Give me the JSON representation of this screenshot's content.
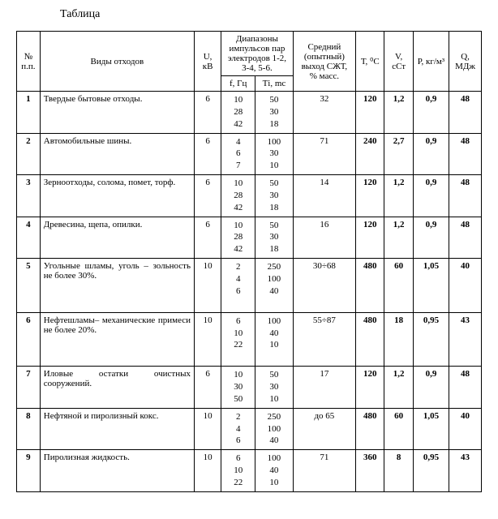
{
  "title": "Таблица",
  "headers": {
    "num": "№ п.п.",
    "waste": "Виды отходов",
    "u": "U, кВ",
    "pulse": "Диапазоны импульсов пар электродов 1-2, 3-4, 5-6.",
    "f": "f, Гц",
    "ti": "Тi, mc",
    "szh": "Средний (опытный) выход СЖТ, % масс.",
    "t": "Т, ⁰С",
    "v": "V, сСт",
    "p": "Р, кг/м³",
    "q": "Q, МДж"
  },
  "rows": [
    {
      "n": "1",
      "waste": "Твердые бытовые отходы.",
      "u": "6",
      "f": [
        "10",
        "28",
        "42"
      ],
      "ti": [
        "50",
        "30",
        "18"
      ],
      "szh": "32",
      "t": "120",
      "v": "1,2",
      "p": "0,9",
      "q": "48",
      "bold": true
    },
    {
      "n": "2",
      "waste": "Автомобильные шины.",
      "u": "6",
      "f": [
        "4",
        "6",
        "7"
      ],
      "ti": [
        "100",
        "30",
        "10"
      ],
      "szh": "71",
      "t": "240",
      "v": "2,7",
      "p": "0,9",
      "q": "48",
      "bold": true
    },
    {
      "n": "3",
      "waste": "Зерноотходы, солома, помет, торф.",
      "u": "6",
      "f": [
        "10",
        "28",
        "42"
      ],
      "ti": [
        "50",
        "30",
        "18"
      ],
      "szh": "14",
      "t": "120",
      "v": "1,2",
      "p": "0,9",
      "q": "48",
      "bold": true
    },
    {
      "n": "4",
      "waste": "Древесина, щепа, опилки.",
      "u": "6",
      "f": [
        "10",
        "28",
        "42"
      ],
      "ti": [
        "50",
        "30",
        "18"
      ],
      "szh": "16",
      "t": "120",
      "v": "1,2",
      "p": "0,9",
      "q": "48",
      "bold": true
    },
    {
      "n": "5",
      "waste": "Угольные шламы, уголь – зольность не более 30%.",
      "u": "10",
      "f": [
        "2",
        "4",
        "6"
      ],
      "ti": [
        "250",
        "100",
        "40"
      ],
      "szh": "30÷68",
      "t": "480",
      "v": "60",
      "p": "1,05",
      "q": "40",
      "bold": true,
      "tall": true
    },
    {
      "n": "6",
      "waste": "Нефтешламы– механические примеси не более 20%.",
      "u": "10",
      "f": [
        "6",
        "10",
        "22"
      ],
      "ti": [
        "100",
        "40",
        "10"
      ],
      "szh": "55÷87",
      "t": "480",
      "v": "18",
      "p": "0,95",
      "q": "43",
      "bold": true,
      "tall": true
    },
    {
      "n": "7",
      "waste": "Иловые остатки очистных сооружений.",
      "u": "6",
      "f": [
        "10",
        "30",
        "50"
      ],
      "ti": [
        "50",
        "30",
        "10"
      ],
      "szh": "17",
      "t": "120",
      "v": "1,2",
      "p": "0,9",
      "q": "48",
      "bold": true
    },
    {
      "n": "8",
      "waste": "Нефтяной и пиролизный кокс.",
      "u": "10",
      "f": [
        "2",
        "4",
        "6"
      ],
      "ti": [
        "250",
        "100",
        "40"
      ],
      "szh": "до 65",
      "t": "480",
      "v": "60",
      "p": "1,05",
      "q": "40",
      "bold": true
    },
    {
      "n": "9",
      "waste": "Пиролизная жидкость.",
      "u": "10",
      "f": [
        "6",
        "10",
        "22"
      ],
      "ti": [
        "100",
        "40",
        "10"
      ],
      "szh": "71",
      "t": "360",
      "v": "8",
      "p": "0,95",
      "q": "43",
      "bold": true
    }
  ]
}
